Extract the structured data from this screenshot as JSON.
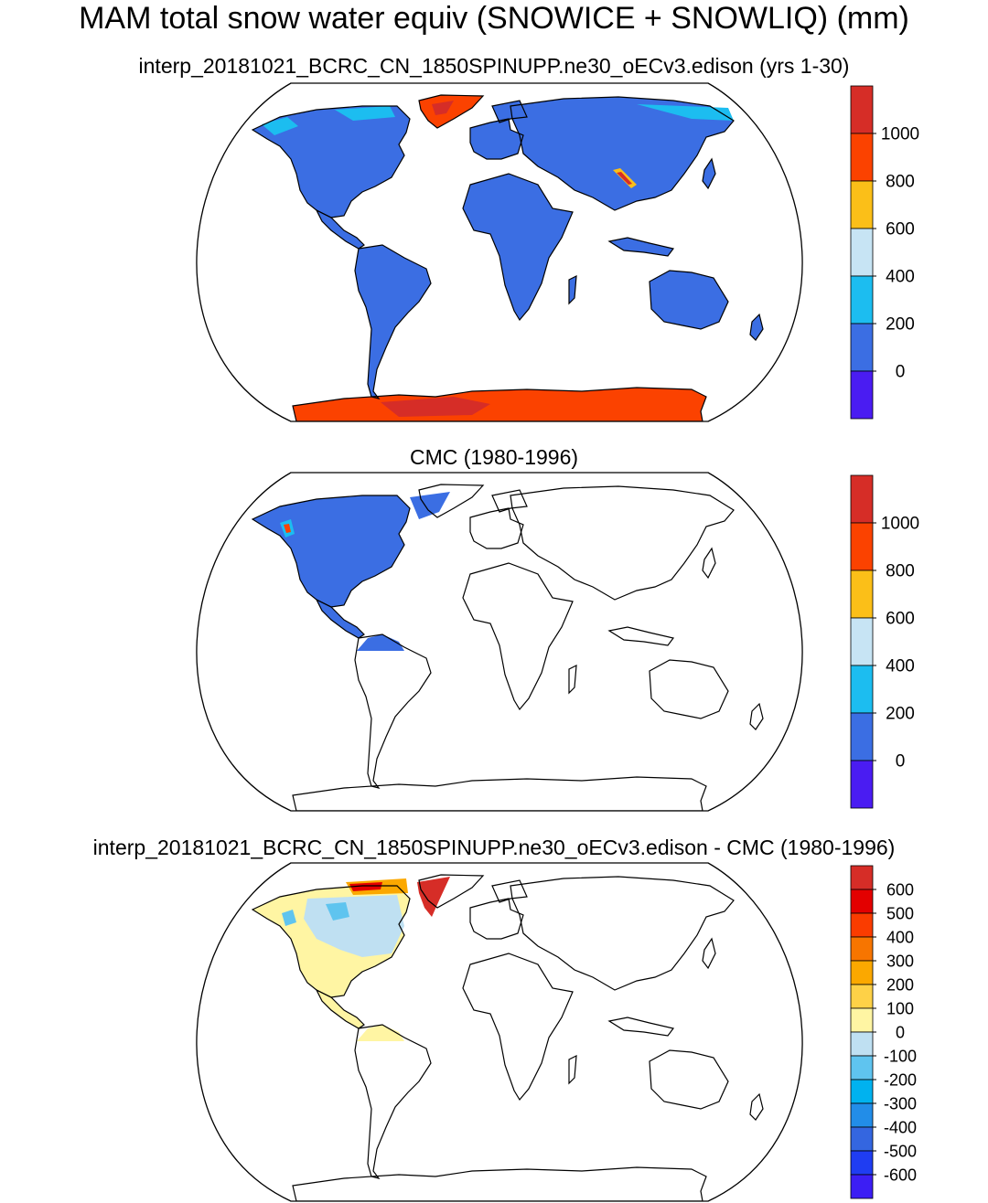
{
  "figure_title": "MAM total snow water equiv (SNOWICE + SNOWLIQ) (mm)",
  "chart_data": [
    {
      "type": "heatmap",
      "title": "interp_20181021_BCRC_CN_1850SPINUPP.ne30_oECv3.edison (yrs 1-30)",
      "projection": "Robinson (global)",
      "colorbar": {
        "levels": [
          0,
          200,
          400,
          600,
          800,
          1000
        ],
        "labels": [
          "0",
          "200",
          "400",
          "600",
          "800",
          "1000"
        ],
        "colors": [
          "#4a1cf2",
          "#3b6ee3",
          "#1cbdf0",
          "#c7e4f4",
          "#fbbf18",
          "#fb4200",
          "#d62d27"
        ]
      },
      "regions": [
        {
          "name": "Land (general)",
          "snow_mm": "0-200"
        },
        {
          "name": "Greenland",
          "snow_mm": "800-1200"
        },
        {
          "name": "Antarctica",
          "snow_mm": "800-1200"
        },
        {
          "name": "Tibetan Plateau strip",
          "snow_mm": "200-1000"
        },
        {
          "name": "Arctic Canada",
          "snow_mm": "200-400"
        }
      ]
    },
    {
      "type": "heatmap",
      "title": "CMC (1980-1996)",
      "projection": "Robinson (global)",
      "coverage": "North America and northern South America only",
      "colorbar": {
        "levels": [
          0,
          200,
          400,
          600,
          800,
          1000
        ],
        "labels": [
          "0",
          "200",
          "400",
          "600",
          "800",
          "1000"
        ],
        "colors": [
          "#4a1cf2",
          "#3b6ee3",
          "#1cbdf0",
          "#c7e4f4",
          "#fbbf18",
          "#fb4200",
          "#d62d27"
        ]
      },
      "regions": [
        {
          "name": "North America",
          "snow_mm": "0-200"
        },
        {
          "name": "Alaska coast",
          "snow_mm": "200-1000"
        }
      ]
    },
    {
      "type": "heatmap",
      "title": "interp_20181021_BCRC_CN_1850SPINUPP.ne30_oECv3.edison - CMC (1980-1996)",
      "projection": "Robinson (global)",
      "colorbar": {
        "levels": [
          -600,
          -500,
          -400,
          -300,
          -200,
          -100,
          0,
          100,
          200,
          300,
          400,
          500,
          600
        ],
        "labels": [
          "-600",
          "-500",
          "-400",
          "-300",
          "-200",
          "-100",
          "0",
          "100",
          "200",
          "300",
          "400",
          "500",
          "600"
        ],
        "colors": [
          "#3c1ef4",
          "#1f3df2",
          "#3466e0",
          "#228de8",
          "#00b2ef",
          "#5fc4ef",
          "#bfe0f2",
          "#fff5a3",
          "#fed147",
          "#fba800",
          "#f77500",
          "#fa3c00",
          "#e30000",
          "#d62d27"
        ]
      },
      "regions": [
        {
          "name": "Conterminous US / Mexico",
          "diff_mm": "0-100"
        },
        {
          "name": "Canada",
          "diff_mm": "-100-0"
        },
        {
          "name": "Greenland (south)",
          "diff_mm": ">600"
        },
        {
          "name": "Canadian Arctic islands",
          "diff_mm": "100-600"
        }
      ]
    }
  ]
}
